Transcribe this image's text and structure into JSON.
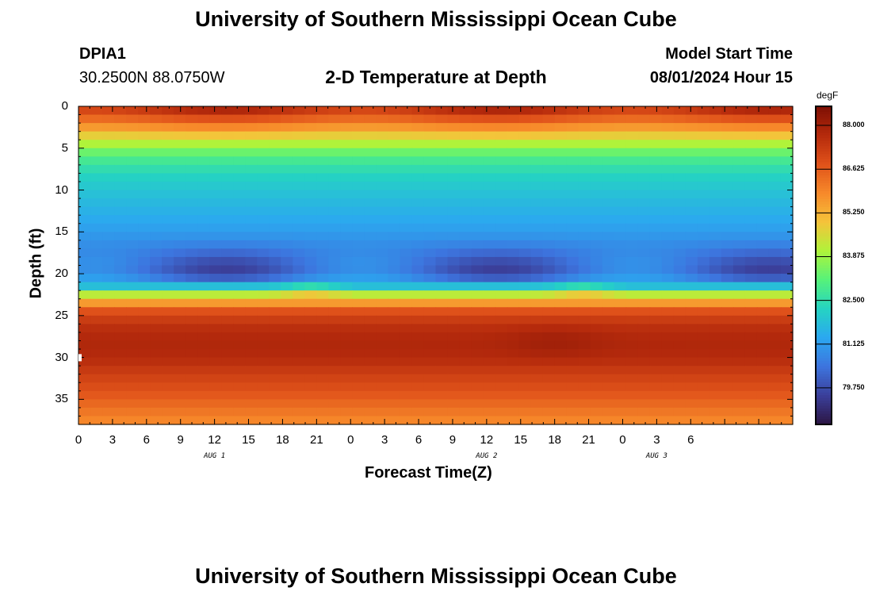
{
  "header": {
    "title": "University of Southern Mississippi Ocean Cube",
    "station": "DPIA1",
    "coords": "30.2500N  88.0750W",
    "subtitle": "2-D Temperature at Depth",
    "model_label": "Model Start Time",
    "model_time": "08/01/2024 Hour 15"
  },
  "footer": {
    "title": "University of Southern Mississippi Ocean Cube"
  },
  "chart_data": {
    "type": "heatmap",
    "title": "2-D Temperature at Depth",
    "xlabel": "Forecast Time(Z)",
    "ylabel": "Depth (ft)",
    "x_range": [
      0,
      63
    ],
    "y_range": [
      0,
      38
    ],
    "x_ticks": [
      {
        "value": 0,
        "label": "0"
      },
      {
        "value": 3,
        "label": "3"
      },
      {
        "value": 6,
        "label": "6"
      },
      {
        "value": 9,
        "label": "9"
      },
      {
        "value": 12,
        "label": "12"
      },
      {
        "value": 15,
        "label": "15"
      },
      {
        "value": 18,
        "label": "18"
      },
      {
        "value": 21,
        "label": "21"
      },
      {
        "value": 24,
        "label": "0"
      },
      {
        "value": 27,
        "label": "3"
      },
      {
        "value": 30,
        "label": "6"
      },
      {
        "value": 33,
        "label": "9"
      },
      {
        "value": 36,
        "label": "12"
      },
      {
        "value": 39,
        "label": "15"
      },
      {
        "value": 42,
        "label": "18"
      },
      {
        "value": 45,
        "label": "21"
      },
      {
        "value": 48,
        "label": "0"
      },
      {
        "value": 51,
        "label": "3"
      },
      {
        "value": 54,
        "label": "6"
      }
    ],
    "y_ticks": [
      {
        "value": 0,
        "label": "0"
      },
      {
        "value": 5,
        "label": "5"
      },
      {
        "value": 10,
        "label": "10"
      },
      {
        "value": 15,
        "label": "15"
      },
      {
        "value": 20,
        "label": "20"
      },
      {
        "value": 25,
        "label": "25"
      },
      {
        "value": 30,
        "label": "30"
      },
      {
        "value": 35,
        "label": "35"
      }
    ],
    "date_labels": [
      {
        "value": 12,
        "label": "AUG 1"
      },
      {
        "value": 36,
        "label": "AUG 2"
      },
      {
        "value": 51,
        "label": "AUG 3"
      }
    ],
    "colorbar": {
      "unit": "degF",
      "min": 78.6,
      "max": 88.6,
      "ticks": [
        "88.000",
        "86.625",
        "85.250",
        "83.875",
        "82.500",
        "81.125",
        "79.750"
      ],
      "colors": [
        "#2b1543",
        "#3b3f9a",
        "#3d74de",
        "#2ba8f0",
        "#25d3c2",
        "#56f27a",
        "#b0f33a",
        "#f5c33a",
        "#f7892a",
        "#e0521a",
        "#b52a0c",
        "#7d0f04"
      ]
    },
    "profile": {
      "depths": [
        0,
        1,
        2,
        3,
        4,
        6,
        8,
        10,
        12,
        14,
        16,
        18,
        19.5,
        20.5,
        21.5,
        22.5,
        23.5,
        24.5,
        26,
        28,
        30,
        32,
        34,
        36,
        38
      ],
      "temps": [
        87.8,
        87.0,
        86.2,
        85.3,
        84.4,
        83.0,
        82.3,
        81.9,
        81.6,
        81.3,
        80.9,
        80.4,
        80.2,
        80.6,
        81.8,
        84.2,
        85.6,
        86.8,
        87.5,
        87.8,
        87.7,
        87.2,
        86.8,
        86.3,
        85.8
      ]
    }
  }
}
